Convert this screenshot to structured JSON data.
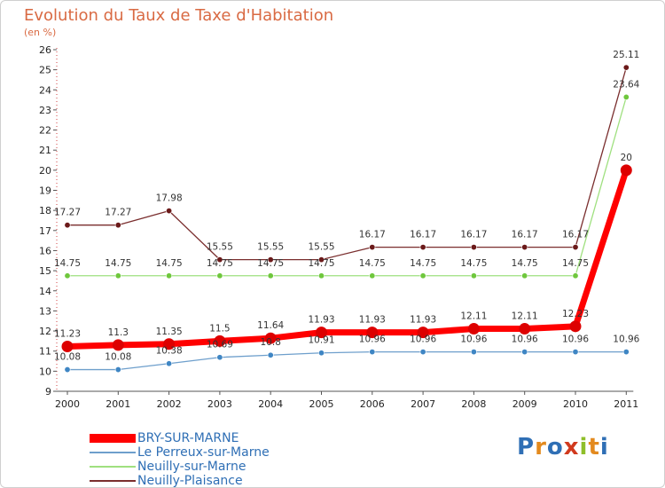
{
  "title": "Evolution du Taux de Taxe d'Habitation",
  "subtitle": "(en %)",
  "logo_text": "Proxiti",
  "chart_data": {
    "type": "line",
    "title": "Evolution du Taux de Taxe d'Habitation",
    "ylabel": "(en %)",
    "xlabel": "",
    "ylim": [
      9,
      26
    ],
    "yticks": [
      9,
      10,
      11,
      12,
      13,
      14,
      15,
      16,
      17,
      18,
      19,
      20,
      21,
      22,
      23,
      24,
      25,
      26
    ],
    "categories": [
      "2000",
      "2001",
      "2002",
      "2003",
      "2004",
      "2005",
      "2006",
      "2007",
      "2008",
      "2009",
      "2010",
      "2011"
    ],
    "grid": false,
    "legend_position": "bottom-left",
    "series": [
      {
        "name": "BRY-SUR-MARNE",
        "color": "#ff0000",
        "marker_color": "#dd0000",
        "emphasis": true,
        "values": [
          11.23,
          11.3,
          11.35,
          11.5,
          11.64,
          11.93,
          11.93,
          11.93,
          12.11,
          12.11,
          12.23,
          20
        ]
      },
      {
        "name": "Le Perreux-sur-Marne",
        "color": "#6e9fcc",
        "marker_color": "#3f86c4",
        "emphasis": false,
        "values": [
          10.08,
          10.08,
          10.38,
          10.69,
          10.8,
          10.91,
          10.96,
          10.96,
          10.96,
          10.96,
          10.96,
          10.96
        ]
      },
      {
        "name": "Neuilly-sur-Marne",
        "color": "#9fe07f",
        "marker_color": "#6fc73d",
        "emphasis": false,
        "values": [
          14.75,
          14.75,
          14.75,
          14.75,
          14.75,
          14.75,
          14.75,
          14.75,
          14.75,
          14.75,
          14.75,
          23.64
        ]
      },
      {
        "name": "Neuilly-Plaisance",
        "color": "#7a2e2e",
        "marker_color": "#6b1a1a",
        "emphasis": false,
        "values": [
          17.27,
          17.27,
          17.98,
          15.55,
          15.55,
          15.55,
          16.17,
          16.17,
          16.17,
          16.17,
          16.17,
          25.11
        ]
      }
    ]
  }
}
